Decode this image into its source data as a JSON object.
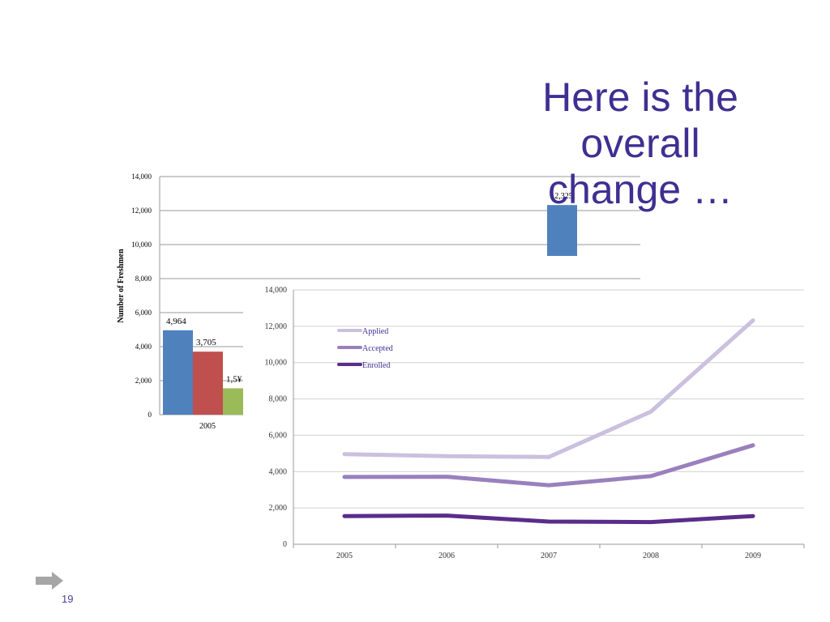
{
  "slide": {
    "title_lines": [
      "Here is the",
      "overall",
      "change …"
    ],
    "page_number": "19"
  },
  "colors": {
    "title": "#3f2f92",
    "bar_applied": "#4f81bd",
    "bar_accepted": "#c0504d",
    "bar_enrolled": "#9bbb59",
    "line_applied": "#cbc0de",
    "line_accepted": "#9a80bd",
    "line_enrolled": "#5a2d8a"
  },
  "chart_data": [
    {
      "type": "bar",
      "ylabel": "Number of Freshmen",
      "ylim": [
        0,
        14000
      ],
      "yticks": [
        "0",
        "2,000",
        "4,000",
        "6,000",
        "8,000",
        "10,000",
        "12,000",
        "14,000"
      ],
      "grid": true,
      "categories": [
        "2005"
      ],
      "series": [
        {
          "values": [
            4964
          ],
          "label": "4,964"
        },
        {
          "values": [
            3705
          ],
          "label": "3,705"
        },
        {
          "values": [
            1550
          ],
          "label": "1,5¥"
        }
      ],
      "partial_bar_label": "12,325"
    },
    {
      "type": "line",
      "x": [
        "2005",
        "2006",
        "2007",
        "2008",
        "2009"
      ],
      "ylim": [
        0,
        14000
      ],
      "yticks": [
        "0",
        "2,000",
        "4,000",
        "6,000",
        "8,000",
        "10,000",
        "12,000",
        "14,000"
      ],
      "grid": true,
      "legend_position": "top-left",
      "series": [
        {
          "name": "Applied",
          "values": [
            4964,
            4850,
            4800,
            7300,
            12325
          ]
        },
        {
          "name": "Accepted",
          "values": [
            3705,
            3720,
            3250,
            3750,
            5450
          ]
        },
        {
          "name": "Enrolled",
          "values": [
            1550,
            1580,
            1250,
            1220,
            1550
          ]
        }
      ]
    }
  ]
}
